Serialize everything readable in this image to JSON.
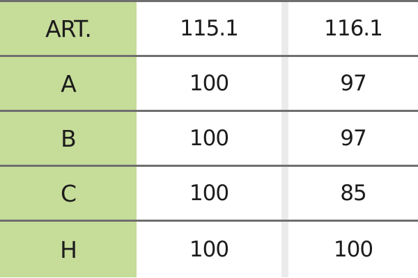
{
  "header": {
    "label": "ART.",
    "columns": [
      "115.1",
      "116.1"
    ]
  },
  "rows": [
    {
      "label": "A",
      "values": [
        "100",
        "97"
      ]
    },
    {
      "label": "B",
      "values": [
        "100",
        "97"
      ]
    },
    {
      "label": "C",
      "values": [
        "100",
        "85"
      ]
    },
    {
      "label": "H",
      "values": [
        "100",
        "100"
      ]
    }
  ],
  "colors": {
    "label_column": "#c6dc99",
    "border": "#6e6e6e"
  }
}
